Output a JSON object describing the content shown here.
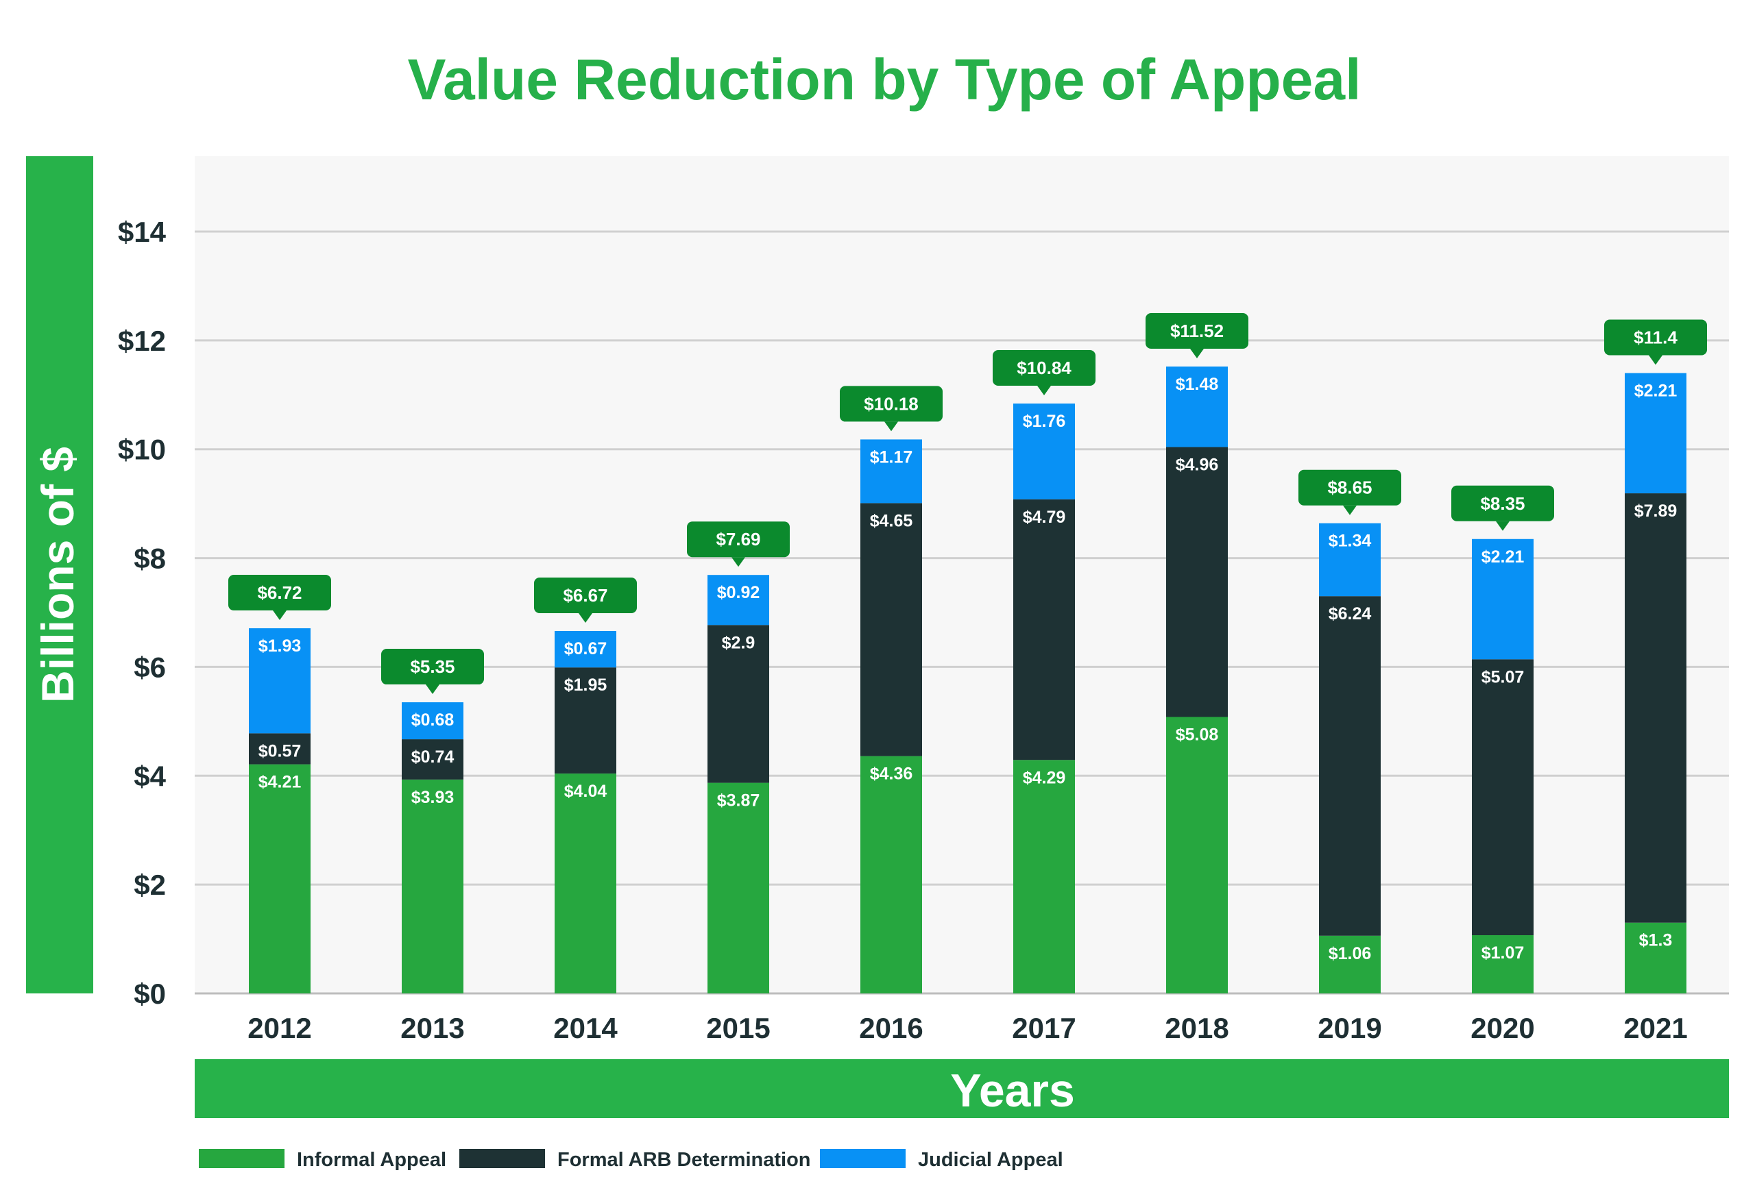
{
  "chart_data": {
    "type": "bar",
    "stacked": true,
    "title": "Value Reduction by Type of Appeal",
    "xlabel": "Years",
    "ylabel": "Billions of $",
    "ylim": [
      0,
      15
    ],
    "yticks": [
      0,
      2,
      4,
      6,
      8,
      10,
      12,
      14
    ],
    "ytick_labels": [
      "$0",
      "$2",
      "$4",
      "$6",
      "$8",
      "$10",
      "$12",
      "$14"
    ],
    "grid": true,
    "legend_position": "bottom-left",
    "categories": [
      "2012",
      "2013",
      "2014",
      "2015",
      "2016",
      "2017",
      "2018",
      "2019",
      "2020",
      "2021"
    ],
    "series": [
      {
        "name": "Informal Appeal",
        "color": "#26a73f",
        "values": [
          4.21,
          3.93,
          4.04,
          3.87,
          4.36,
          4.29,
          5.08,
          1.06,
          1.07,
          1.3
        ],
        "labels": [
          "$4.21",
          "$3.93",
          "$4.04",
          "$3.87",
          "$4.36",
          "$4.29",
          "$5.08",
          "$1.06",
          "$1.07",
          "$1.3"
        ]
      },
      {
        "name": "Formal ARB Determination",
        "color": "#1e3234",
        "values": [
          0.57,
          0.74,
          1.95,
          2.9,
          4.65,
          4.79,
          4.96,
          6.24,
          5.07,
          7.89
        ],
        "labels": [
          "$0.57",
          "$0.74",
          "$1.95",
          "$2.9",
          "$4.65",
          "$4.79",
          "$4.96",
          "$6.24",
          "$5.07",
          "$7.89"
        ]
      },
      {
        "name": "Judicial Appeal",
        "color": "#0891f5",
        "values": [
          1.93,
          0.68,
          0.67,
          0.92,
          1.17,
          1.76,
          1.48,
          1.34,
          2.21,
          2.21
        ],
        "labels": [
          "$1.93",
          "$0.68",
          "$0.67",
          "$0.92",
          "$1.17",
          "$1.76",
          "$1.48",
          "$1.34",
          "$2.21",
          "$2.21"
        ]
      }
    ],
    "totals": [
      6.72,
      5.35,
      6.67,
      7.69,
      10.18,
      10.84,
      11.52,
      8.65,
      8.35,
      11.4
    ],
    "total_labels": [
      "$6.72",
      "$5.35",
      "$6.67",
      "$7.69",
      "$10.18",
      "$10.84",
      "$11.52",
      "$8.65",
      "$8.35",
      "$11.4"
    ],
    "colors": {
      "title": "#26b04a",
      "axis_band": "#27b24a",
      "total_badge": "#0b8a2d",
      "plot_background": "#f7f7f7",
      "grid": "#d0d0d0"
    }
  }
}
